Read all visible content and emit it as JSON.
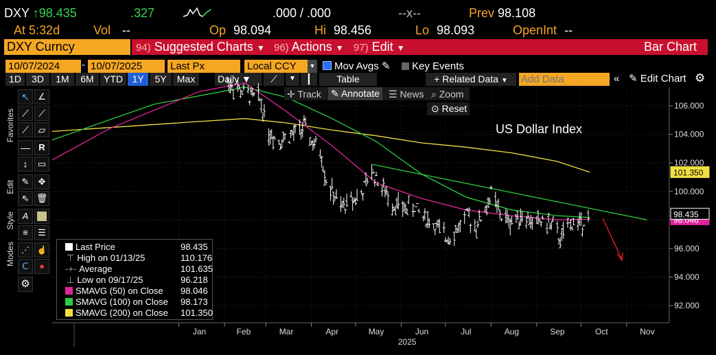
{
  "ticker": {
    "symbol": "DXY",
    "arrow": "↑",
    "last": "98.435",
    "change": ".327",
    "bid_ask": ".000 / .000",
    "x_sep": "--x--",
    "prev_label": "Prev",
    "prev_value": "98.108",
    "at_label": "At",
    "at_value": "5:32d",
    "vol_label": "Vol",
    "vol_value": "--",
    "op_label": "Op",
    "op_value": "98.094",
    "hi_label": "Hi",
    "hi_value": "98.456",
    "lo_label": "Lo",
    "lo_value": "98.093",
    "openint_label": "OpenInt",
    "openint_value": "--"
  },
  "menu": {
    "security": "DXY Curncy",
    "suggested_num": "94)",
    "suggested": "Suggested Charts",
    "actions_num": "96)",
    "actions": "Actions",
    "edit_num": "97)",
    "edit": "Edit",
    "chart_type": "Bar Chart"
  },
  "toolbar": {
    "start_date": "10/07/2024",
    "end_date": "10/07/2025",
    "field": "Last Px",
    "currency": "Local CCY",
    "mov_avgs": "Mov Avgs",
    "key_events": "Key Events",
    "ranges": [
      "1D",
      "3D",
      "1M",
      "6M",
      "YTD",
      "1Y",
      "5Y",
      "Max"
    ],
    "active_range": "1Y",
    "period": "Daily",
    "table": "Table",
    "related_data": "Related Data",
    "add_data_placeholder": "Add Data",
    "edit_chart": "Edit Chart"
  },
  "chart_tools": {
    "track": "Track",
    "annotate": "Annotate",
    "news": "News",
    "zoom": "Zoom",
    "reset": "Reset"
  },
  "side_labels": {
    "favorites": "Favorites",
    "edit": "Edit",
    "style": "Style",
    "modes": "Modes"
  },
  "legend": {
    "items": [
      {
        "label": "Last Price",
        "value": "98.435"
      },
      {
        "label": "High on 01/13/25",
        "value": "110.176"
      },
      {
        "label": "Average",
        "value": "101.635"
      },
      {
        "label": "Low on 09/17/25",
        "value": "96.218"
      },
      {
        "label": "SMAVG (50)  on Close",
        "value": "98.046"
      },
      {
        "label": "SMAVG (100)  on Close",
        "value": "98.173"
      },
      {
        "label": "SMAVG (200)  on Close",
        "value": "101.350"
      }
    ]
  },
  "colors": {
    "sma50": "#e0249a",
    "sma100": "#2ecc40",
    "sma200": "#f0e040",
    "accent_orange": "#f5a623",
    "menu_red": "#c8102e",
    "annotation_red": "#e02020"
  },
  "chart_data": {
    "type": "bar",
    "title": "US Dollar Index",
    "x_ticks": [
      "Jan",
      "Feb",
      "Mar",
      "Apr",
      "May",
      "Jun",
      "Jul",
      "Aug",
      "Sep",
      "Oct",
      "Nov"
    ],
    "x_year": "2025",
    "y_ticks": [
      "106.000",
      "104.000",
      "102.000",
      "100.000",
      "98.000",
      "96.000",
      "94.000",
      "92.000"
    ],
    "y_range": [
      90.8,
      107.3
    ],
    "last_price_tag": "98.435",
    "sma200_tag": "101.350",
    "sma50_tag": "98.046",
    "close_series": [
      {
        "date": "2025-02-01",
        "value": 107.8
      },
      {
        "date": "2025-02-15",
        "value": 106.8
      },
      {
        "date": "2025-02-25",
        "value": 106.5
      },
      {
        "date": "2025-03-03",
        "value": 104.2
      },
      {
        "date": "2025-03-10",
        "value": 103.6
      },
      {
        "date": "2025-03-20",
        "value": 104.0
      },
      {
        "date": "2025-03-27",
        "value": 104.5
      },
      {
        "date": "2025-04-02",
        "value": 103.3
      },
      {
        "date": "2025-04-07",
        "value": 102.9
      },
      {
        "date": "2025-04-11",
        "value": 100.8
      },
      {
        "date": "2025-04-21",
        "value": 98.8
      },
      {
        "date": "2025-04-28",
        "value": 99.4
      },
      {
        "date": "2025-05-05",
        "value": 99.8
      },
      {
        "date": "2025-05-12",
        "value": 101.4
      },
      {
        "date": "2025-05-19",
        "value": 100.3
      },
      {
        "date": "2025-05-26",
        "value": 99.2
      },
      {
        "date": "2025-06-02",
        "value": 98.8
      },
      {
        "date": "2025-06-10",
        "value": 98.9
      },
      {
        "date": "2025-06-17",
        "value": 98.2
      },
      {
        "date": "2025-06-24",
        "value": 97.6
      },
      {
        "date": "2025-07-01",
        "value": 96.8
      },
      {
        "date": "2025-07-08",
        "value": 97.2
      },
      {
        "date": "2025-07-15",
        "value": 98.3
      },
      {
        "date": "2025-07-22",
        "value": 97.6
      },
      {
        "date": "2025-07-29",
        "value": 98.9
      },
      {
        "date": "2025-08-01",
        "value": 99.9
      },
      {
        "date": "2025-08-08",
        "value": 98.2
      },
      {
        "date": "2025-08-15",
        "value": 97.9
      },
      {
        "date": "2025-08-22",
        "value": 98.4
      },
      {
        "date": "2025-08-29",
        "value": 97.8
      },
      {
        "date": "2025-09-05",
        "value": 97.9
      },
      {
        "date": "2025-09-12",
        "value": 97.6
      },
      {
        "date": "2025-09-17",
        "value": 96.6
      },
      {
        "date": "2025-09-24",
        "value": 97.8
      },
      {
        "date": "2025-10-01",
        "value": 97.8
      },
      {
        "date": "2025-10-07",
        "value": 98.4
      }
    ],
    "sma50_series": [
      {
        "date": "2024-10-07",
        "value": 102.2
      },
      {
        "date": "2024-11-15",
        "value": 104.4
      },
      {
        "date": "2025-01-15",
        "value": 107.0
      },
      {
        "date": "2025-02-15",
        "value": 107.6
      },
      {
        "date": "2025-03-15",
        "value": 105.6
      },
      {
        "date": "2025-04-15",
        "value": 103.2
      },
      {
        "date": "2025-05-15",
        "value": 100.6
      },
      {
        "date": "2025-06-15",
        "value": 99.5
      },
      {
        "date": "2025-07-15",
        "value": 98.7
      },
      {
        "date": "2025-08-15",
        "value": 98.3
      },
      {
        "date": "2025-09-15",
        "value": 98.0
      },
      {
        "date": "2025-10-07",
        "value": 98.05
      }
    ],
    "sma100_series": [
      {
        "date": "2024-10-07",
        "value": 103.6
      },
      {
        "date": "2024-12-15",
        "value": 106.1
      },
      {
        "date": "2025-02-15",
        "value": 107.3
      },
      {
        "date": "2025-03-15",
        "value": 106.6
      },
      {
        "date": "2025-04-15",
        "value": 105.1
      },
      {
        "date": "2025-05-15",
        "value": 103.5
      },
      {
        "date": "2025-06-15",
        "value": 101.2
      },
      {
        "date": "2025-07-15",
        "value": 99.6
      },
      {
        "date": "2025-08-15",
        "value": 98.7
      },
      {
        "date": "2025-09-15",
        "value": 98.3
      },
      {
        "date": "2025-10-07",
        "value": 98.17
      }
    ],
    "sma200_series": [
      {
        "date": "2024-10-07",
        "value": 104.2
      },
      {
        "date": "2025-01-15",
        "value": 104.9
      },
      {
        "date": "2025-02-15",
        "value": 105.1
      },
      {
        "date": "2025-03-15",
        "value": 104.8
      },
      {
        "date": "2025-04-15",
        "value": 104.3
      },
      {
        "date": "2025-05-15",
        "value": 103.9
      },
      {
        "date": "2025-06-15",
        "value": 103.4
      },
      {
        "date": "2025-07-15",
        "value": 103.1
      },
      {
        "date": "2025-08-15",
        "value": 102.7
      },
      {
        "date": "2025-09-15",
        "value": 102.1
      },
      {
        "date": "2025-10-07",
        "value": 101.35
      }
    ],
    "trendline": [
      {
        "date": "2025-05-12",
        "value": 101.9
      },
      {
        "date": "2025-11-15",
        "value": 98.0
      }
    ]
  }
}
